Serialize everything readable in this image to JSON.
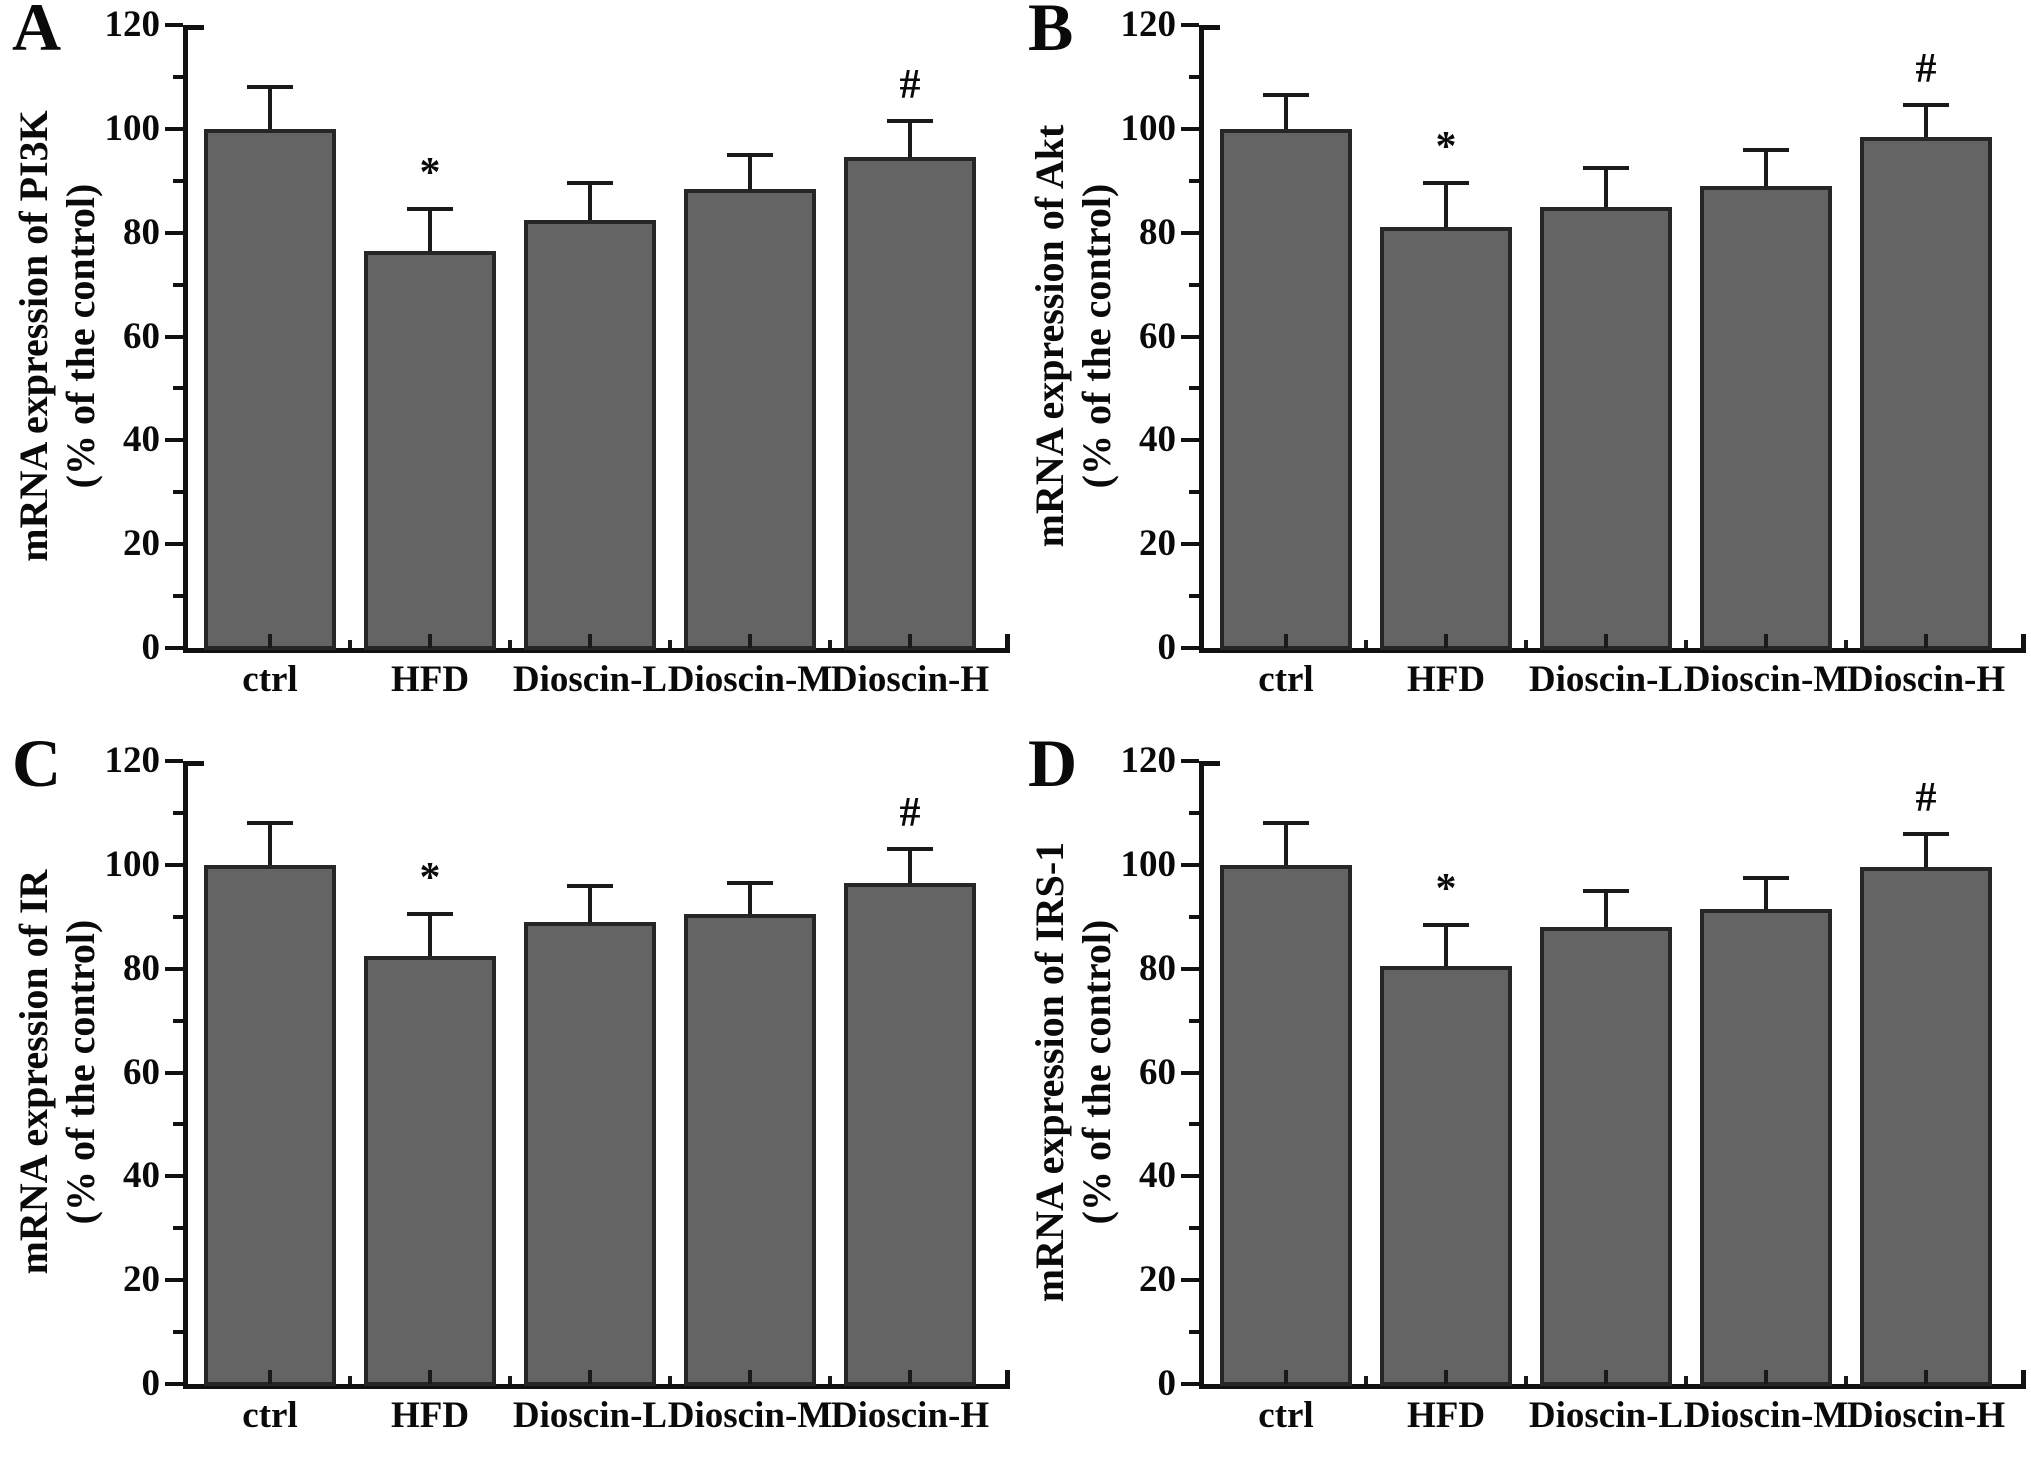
{
  "colors": {
    "bar_fill": "#646464",
    "bar_edge": "#262626",
    "axis": "#111111",
    "text": "#0a0a0a",
    "background": "#ffffff"
  },
  "chart_data": [
    {
      "type": "bar",
      "panel_label": "A",
      "ylabel_line1": "mRNA expression of PI3K",
      "ylabel_line2": "(% of the control)",
      "categories": [
        "ctrl",
        "HFD",
        "Dioscin-L",
        "Dioscin-M",
        "Dioscin-H"
      ],
      "values": [
        100,
        76.5,
        82.5,
        88.5,
        94.5
      ],
      "errors": [
        8,
        8,
        7,
        6.5,
        7
      ],
      "sig": [
        "",
        "*",
        "",
        "",
        "#"
      ],
      "ylim": [
        0,
        120
      ],
      "yticks_major": [
        0,
        20,
        40,
        60,
        80,
        100,
        120
      ],
      "yticks_minor": [
        10,
        30,
        50,
        70,
        90,
        110
      ],
      "grid": "off",
      "legend": "none"
    },
    {
      "type": "bar",
      "panel_label": "B",
      "ylabel_line1": "mRNA expression of Akt",
      "ylabel_line2": "(% of the control)",
      "categories": [
        "ctrl",
        "HFD",
        "Dioscin-L",
        "Dioscin-M",
        "Dioscin-H"
      ],
      "values": [
        100,
        81,
        85,
        89,
        98.5
      ],
      "errors": [
        6.5,
        8.5,
        7.5,
        7,
        6
      ],
      "sig": [
        "",
        "*",
        "",
        "",
        "#"
      ],
      "ylim": [
        0,
        120
      ],
      "yticks_major": [
        0,
        20,
        40,
        60,
        80,
        100,
        120
      ],
      "yticks_minor": [
        10,
        30,
        50,
        70,
        90,
        110
      ],
      "grid": "off",
      "legend": "none"
    },
    {
      "type": "bar",
      "panel_label": "C",
      "ylabel_line1": "mRNA expression of IR",
      "ylabel_line2": "(% of the control)",
      "categories": [
        "ctrl",
        "HFD",
        "Dioscin-L",
        "Dioscin-M",
        "Dioscin-H"
      ],
      "values": [
        100,
        82.5,
        89,
        90.5,
        96.5
      ],
      "errors": [
        8,
        8,
        7,
        6,
        6.5
      ],
      "sig": [
        "",
        "*",
        "",
        "",
        "#"
      ],
      "ylim": [
        0,
        120
      ],
      "yticks_major": [
        0,
        20,
        40,
        60,
        80,
        100,
        120
      ],
      "yticks_minor": [
        10,
        30,
        50,
        70,
        90,
        110
      ],
      "grid": "off",
      "legend": "none"
    },
    {
      "type": "bar",
      "panel_label": "D",
      "ylabel_line1": "mRNA expression of IRS-1",
      "ylabel_line2": "(% of the control)",
      "categories": [
        "ctrl",
        "HFD",
        "Dioscin-L",
        "Dioscin-M",
        "Dioscin-H"
      ],
      "values": [
        100,
        80.5,
        88,
        91.5,
        99.5
      ],
      "errors": [
        8,
        8,
        7,
        6,
        6.5
      ],
      "sig": [
        "",
        "*",
        "",
        "",
        "#"
      ],
      "ylim": [
        0,
        120
      ],
      "yticks_major": [
        0,
        20,
        40,
        60,
        80,
        100,
        120
      ],
      "yticks_minor": [
        10,
        30,
        50,
        70,
        90,
        110
      ],
      "grid": "off",
      "legend": "none"
    }
  ]
}
